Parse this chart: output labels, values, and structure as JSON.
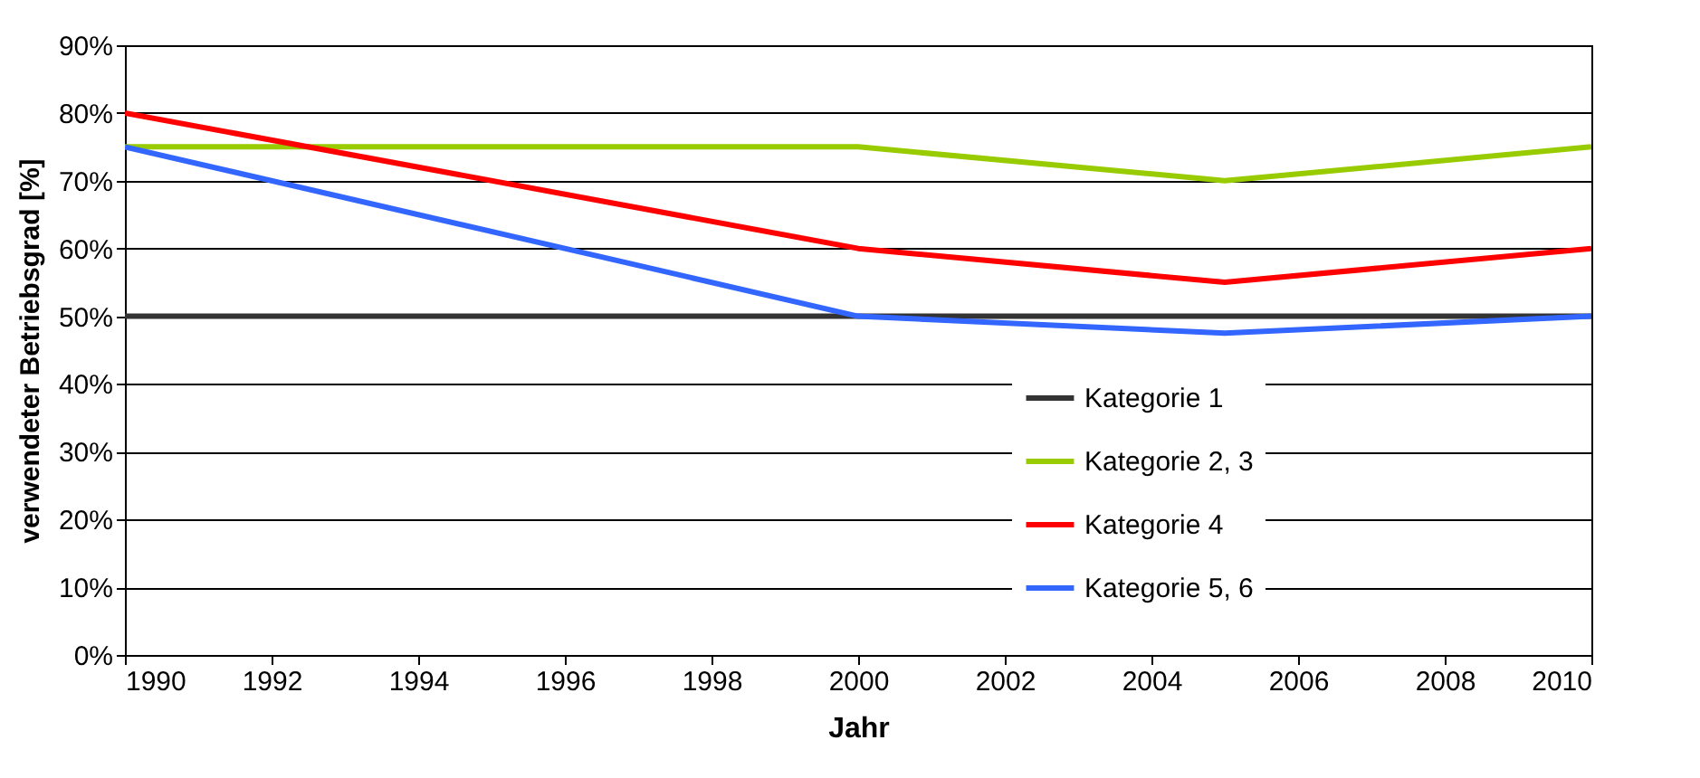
{
  "chart_data": {
    "type": "line",
    "xlabel": "Jahr",
    "ylabel": "verwendeter Betriebsgrad [%]",
    "x": [
      1990,
      2000,
      2005,
      2010
    ],
    "series": [
      {
        "name": "Kategorie 1",
        "color": "#333333",
        "values": [
          50,
          50,
          50,
          50
        ]
      },
      {
        "name": "Kategorie 2, 3",
        "color": "#99cc00",
        "values": [
          75,
          75,
          70,
          75
        ]
      },
      {
        "name": "Kategorie 4",
        "color": "#ff0000",
        "values": [
          80,
          60,
          55,
          60
        ]
      },
      {
        "name": "Kategorie 5, 6",
        "color": "#3366ff",
        "values": [
          75,
          50,
          47.5,
          50
        ]
      }
    ],
    "xlim": [
      1990,
      2010
    ],
    "xticks": [
      1990,
      1992,
      1994,
      1996,
      1998,
      2000,
      2002,
      2004,
      2006,
      2008,
      2010
    ],
    "ylim": [
      0,
      90
    ],
    "yticks": [
      {
        "value": 0,
        "label": "0%"
      },
      {
        "value": 10,
        "label": "10%"
      },
      {
        "value": 20,
        "label": "20%"
      },
      {
        "value": 30,
        "label": "30%"
      },
      {
        "value": 40,
        "label": "40%"
      },
      {
        "value": 50,
        "label": "50%"
      },
      {
        "value": 60,
        "label": "60%"
      },
      {
        "value": 70,
        "label": "70%"
      },
      {
        "value": 80,
        "label": "80%"
      },
      {
        "value": 90,
        "label": "90%"
      }
    ],
    "grid": "y",
    "legend": "bottom right",
    "marker": "none",
    "line_style": "solid"
  }
}
